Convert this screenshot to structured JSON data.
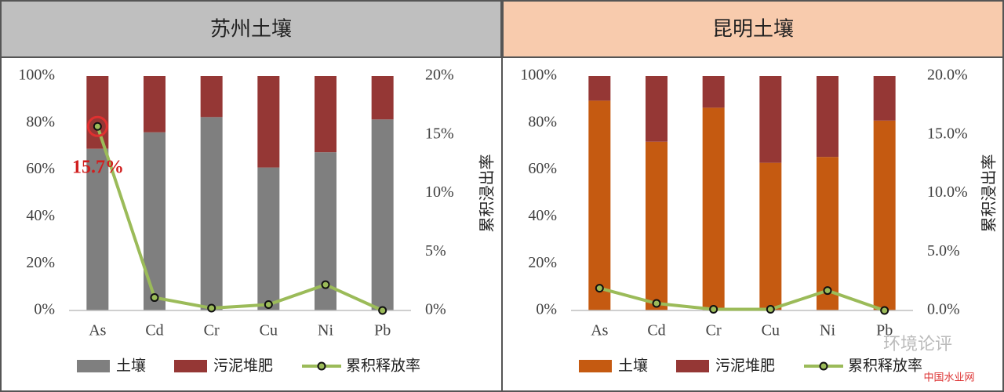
{
  "chart_data": [
    {
      "type": "bar",
      "stacked": true,
      "title": "苏州土壤",
      "header_color": "#bfbfbf",
      "categories": [
        "As",
        "Cd",
        "Cr",
        "Cu",
        "Ni",
        "Pb"
      ],
      "series": [
        {
          "name": "土壤",
          "color": "#7f7f7f",
          "type": "bar",
          "values": [
            69,
            76,
            82.5,
            61,
            67.5,
            81.5
          ]
        },
        {
          "name": "污泥堆肥",
          "color": "#953735",
          "type": "bar",
          "values": [
            31,
            24,
            17.5,
            39,
            32.5,
            18.5
          ]
        },
        {
          "name": "累积释放率",
          "color": "#9bbb59",
          "type": "line",
          "axis": "y2",
          "values": [
            15.7,
            1.1,
            0.2,
            0.5,
            2.2,
            0
          ]
        }
      ],
      "ylim": [
        0,
        100
      ],
      "yticks": [
        {
          "value": 0,
          "label": "0%"
        },
        {
          "value": 20,
          "label": "20%"
        },
        {
          "value": 40,
          "label": "40%"
        },
        {
          "value": 60,
          "label": "60%"
        },
        {
          "value": 80,
          "label": "80%"
        },
        {
          "value": 100,
          "label": "100%"
        }
      ],
      "y2lim": [
        0,
        20
      ],
      "y2ticks": [
        {
          "value": 0,
          "label": "0%"
        },
        {
          "value": 5,
          "label": "5%"
        },
        {
          "value": 10,
          "label": "10%"
        },
        {
          "value": 15,
          "label": "15%"
        },
        {
          "value": 20,
          "label": "20%"
        }
      ],
      "y2label": "累积浸出率",
      "annotation": {
        "text": "15.7%",
        "series": 2,
        "index": 0
      }
    },
    {
      "type": "bar",
      "stacked": true,
      "title": "昆明土壤",
      "header_color": "#f8cbad",
      "categories": [
        "As",
        "Cd",
        "Cr",
        "Cu",
        "Ni",
        "Pb"
      ],
      "series": [
        {
          "name": "土壤",
          "color": "#c55a11",
          "type": "bar",
          "values": [
            89.5,
            72,
            86.5,
            63,
            65.5,
            81
          ]
        },
        {
          "name": "污泥堆肥",
          "color": "#953735",
          "type": "bar",
          "values": [
            10.5,
            28,
            13.5,
            37,
            34.5,
            19
          ]
        },
        {
          "name": "累积释放率",
          "color": "#9bbb59",
          "type": "line",
          "axis": "y2",
          "values": [
            1.9,
            0.6,
            0.1,
            0.1,
            1.7,
            0
          ]
        }
      ],
      "ylim": [
        0,
        100
      ],
      "yticks": [
        {
          "value": 0,
          "label": "0%"
        },
        {
          "value": 20,
          "label": "20%"
        },
        {
          "value": 40,
          "label": "40%"
        },
        {
          "value": 60,
          "label": "60%"
        },
        {
          "value": 80,
          "label": "80%"
        },
        {
          "value": 100,
          "label": "100%"
        }
      ],
      "y2lim": [
        0,
        20
      ],
      "y2ticks": [
        {
          "value": 0,
          "label": "0.0%"
        },
        {
          "value": 5,
          "label": "5.0%"
        },
        {
          "value": 10,
          "label": "10.0%"
        },
        {
          "value": 15,
          "label": "15.0%"
        },
        {
          "value": 20,
          "label": "20.0%"
        }
      ],
      "y2label": "累积浸出率"
    }
  ],
  "watermark": {
    "brand": "环境论评",
    "site": "中国水业网"
  }
}
